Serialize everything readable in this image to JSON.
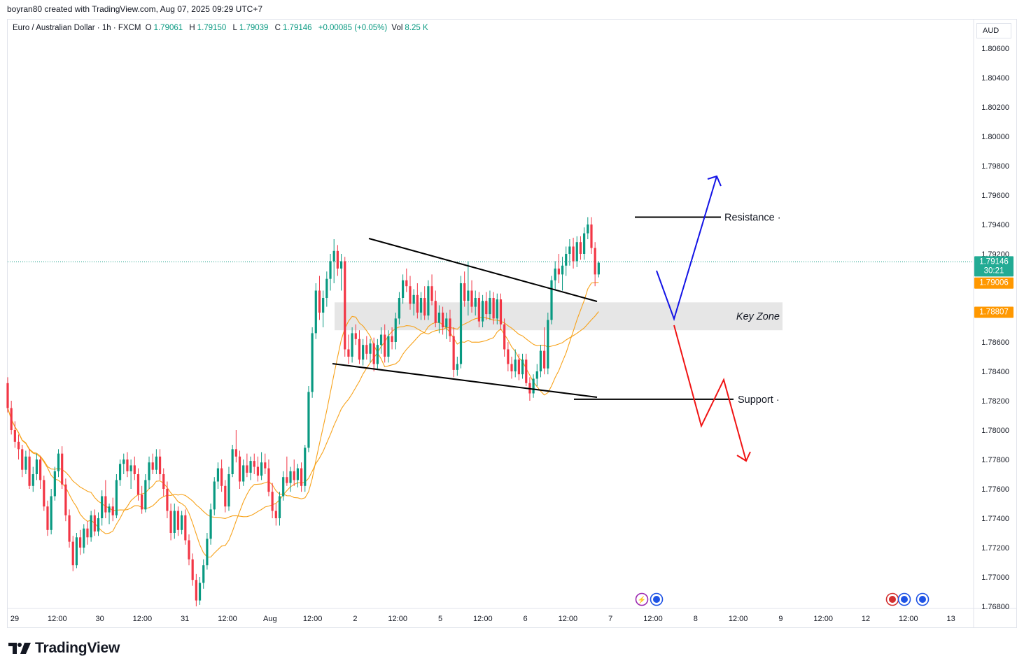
{
  "header": {
    "credit": "boyran80 created with TradingView.com, Aug 07, 2025 09:29 UTC+7"
  },
  "legend": {
    "symbol": "Euro / Australian Dollar · 1h · FXCM",
    "o_label": "O",
    "o_value": "1.79061",
    "h_label": "H",
    "h_value": "1.79150",
    "l_label": "L",
    "l_value": "1.79039",
    "c_label": "C",
    "c_value": "1.79146",
    "change": "+0.00085 (+0.05%)",
    "vol_label": "Vol",
    "vol_value": "8.25 K"
  },
  "axis": {
    "currency": "AUD",
    "price_ticks": [
      "1.80600",
      "1.80400",
      "1.80200",
      "1.80000",
      "1.79800",
      "1.79600",
      "1.79400",
      "1.79200",
      "1.79000",
      "1.78800",
      "1.78600",
      "1.78400",
      "1.78200",
      "1.78000",
      "1.77800",
      "1.77600",
      "1.77400",
      "1.77200",
      "1.77000",
      "1.76800"
    ],
    "time_ticks": [
      "29",
      "12:00",
      "30",
      "12:00",
      "31",
      "12:00",
      "Aug",
      "12:00",
      "2",
      "12:00",
      "5",
      "12:00",
      "6",
      "12:00",
      "7",
      "12:00",
      "8",
      "12:00",
      "9",
      "12:00",
      "12",
      "12:00",
      "13"
    ]
  },
  "price_labels": {
    "last_price": "1.79146",
    "countdown": "30:21",
    "ma_fast": "1.79006",
    "ma_slow": "1.78807"
  },
  "colors": {
    "up": "#089981",
    "down": "#f23645",
    "ma": "#f7a21b",
    "projection_up": "#1414e6",
    "projection_down": "#f01414",
    "key_zone": "#e6e6e6",
    "price_badge": "#22ab94",
    "ma_badge": "#ff9800"
  },
  "annotations": {
    "resistance_label": "Resistance",
    "support_label": "Support",
    "key_zone_label": "Key Zone",
    "resistance_price": 1.7945,
    "support_price": 1.7821,
    "key_zone_range": [
      1.7868,
      1.7887
    ]
  },
  "brand": {
    "name": "TradingView"
  },
  "chart_data": {
    "type": "candlestick",
    "title": "Euro / Australian Dollar · 1h · FXCM",
    "ylabel": "AUD",
    "ylim": [
      1.768,
      1.807
    ],
    "series": [
      {
        "name": "EURAUD",
        "ohlc": [
          [
            1.7832,
            1.7836,
            1.7812,
            1.7815
          ],
          [
            1.7815,
            1.782,
            1.7797,
            1.78
          ],
          [
            1.78,
            1.7806,
            1.7788,
            1.7792
          ],
          [
            1.7792,
            1.7797,
            1.778,
            1.7787
          ],
          [
            1.7787,
            1.779,
            1.7768,
            1.7773
          ],
          [
            1.7773,
            1.7786,
            1.777,
            1.7782
          ],
          [
            1.7782,
            1.7787,
            1.776,
            1.7762
          ],
          [
            1.7762,
            1.7775,
            1.7758,
            1.777
          ],
          [
            1.777,
            1.7784,
            1.7766,
            1.778
          ],
          [
            1.778,
            1.7782,
            1.776,
            1.7766
          ],
          [
            1.7766,
            1.7769,
            1.7745,
            1.7748
          ],
          [
            1.7748,
            1.7752,
            1.7728,
            1.7732
          ],
          [
            1.7732,
            1.776,
            1.7729,
            1.7755
          ],
          [
            1.7755,
            1.7775,
            1.7752,
            1.7772
          ],
          [
            1.7772,
            1.7787,
            1.7768,
            1.7784
          ],
          [
            1.7784,
            1.7789,
            1.776,
            1.7763
          ],
          [
            1.7763,
            1.7767,
            1.7738,
            1.7742
          ],
          [
            1.7742,
            1.7746,
            1.772,
            1.7724
          ],
          [
            1.7724,
            1.7728,
            1.7704,
            1.7708
          ],
          [
            1.7708,
            1.773,
            1.7706,
            1.7727
          ],
          [
            1.7727,
            1.7732,
            1.7715,
            1.772
          ],
          [
            1.772,
            1.7736,
            1.7716,
            1.7733
          ],
          [
            1.7733,
            1.7738,
            1.7722,
            1.7727
          ],
          [
            1.7727,
            1.7745,
            1.7724,
            1.7742
          ],
          [
            1.7742,
            1.7746,
            1.7728,
            1.7731
          ],
          [
            1.7731,
            1.7744,
            1.7728,
            1.774
          ],
          [
            1.774,
            1.7759,
            1.7735,
            1.7755
          ],
          [
            1.7755,
            1.7766,
            1.774,
            1.7744
          ],
          [
            1.7744,
            1.775,
            1.7736,
            1.7748
          ],
          [
            1.7748,
            1.7754,
            1.7738,
            1.7742
          ],
          [
            1.7742,
            1.777,
            1.774,
            1.7766
          ],
          [
            1.7766,
            1.778,
            1.7762,
            1.7777
          ],
          [
            1.7777,
            1.7784,
            1.777,
            1.778
          ],
          [
            1.778,
            1.7785,
            1.7768,
            1.7772
          ],
          [
            1.7772,
            1.778,
            1.776,
            1.7776
          ],
          [
            1.7776,
            1.7782,
            1.7766,
            1.777
          ],
          [
            1.777,
            1.7774,
            1.7752,
            1.7756
          ],
          [
            1.7756,
            1.7762,
            1.7743,
            1.7746
          ],
          [
            1.7746,
            1.777,
            1.7744,
            1.7766
          ],
          [
            1.7766,
            1.7782,
            1.776,
            1.7778
          ],
          [
            1.7778,
            1.7784,
            1.777,
            1.7773
          ],
          [
            1.7773,
            1.7787,
            1.777,
            1.7782
          ],
          [
            1.7782,
            1.7787,
            1.7766,
            1.777
          ],
          [
            1.777,
            1.7774,
            1.7755,
            1.776
          ],
          [
            1.776,
            1.7765,
            1.774,
            1.7745
          ],
          [
            1.7745,
            1.775,
            1.7725,
            1.773
          ],
          [
            1.773,
            1.775,
            1.7726,
            1.7745
          ],
          [
            1.7745,
            1.7748,
            1.7728,
            1.7732
          ],
          [
            1.7732,
            1.7745,
            1.7729,
            1.7742
          ],
          [
            1.7742,
            1.7746,
            1.7722,
            1.7725
          ],
          [
            1.7725,
            1.7729,
            1.7708,
            1.7712
          ],
          [
            1.7712,
            1.7716,
            1.7694,
            1.7698
          ],
          [
            1.7698,
            1.7702,
            1.768,
            1.7684
          ],
          [
            1.7684,
            1.77,
            1.7681,
            1.7696
          ],
          [
            1.7696,
            1.7712,
            1.7692,
            1.7708
          ],
          [
            1.7708,
            1.773,
            1.7705,
            1.7726
          ],
          [
            1.7726,
            1.775,
            1.7722,
            1.7746
          ],
          [
            1.7746,
            1.7768,
            1.7742,
            1.7765
          ],
          [
            1.7765,
            1.7778,
            1.776,
            1.7774
          ],
          [
            1.7774,
            1.778,
            1.7758,
            1.7762
          ],
          [
            1.7762,
            1.7766,
            1.7744,
            1.7748
          ],
          [
            1.7748,
            1.7775,
            1.7745,
            1.777
          ],
          [
            1.777,
            1.779,
            1.7768,
            1.7787
          ],
          [
            1.7787,
            1.78,
            1.7778,
            1.7782
          ],
          [
            1.7782,
            1.7786,
            1.776,
            1.7765
          ],
          [
            1.7765,
            1.778,
            1.7762,
            1.7776
          ],
          [
            1.7776,
            1.7784,
            1.7768,
            1.7771
          ],
          [
            1.7771,
            1.7782,
            1.7766,
            1.7779
          ],
          [
            1.7779,
            1.7784,
            1.777,
            1.7775
          ],
          [
            1.7775,
            1.7782,
            1.7765,
            1.7769
          ],
          [
            1.7769,
            1.7785,
            1.7766,
            1.7778
          ],
          [
            1.7778,
            1.7784,
            1.777,
            1.7774
          ],
          [
            1.7774,
            1.778,
            1.7755,
            1.7758
          ],
          [
            1.7758,
            1.7764,
            1.774,
            1.7745
          ],
          [
            1.7745,
            1.775,
            1.7735,
            1.774
          ],
          [
            1.774,
            1.7758,
            1.7735,
            1.7755
          ],
          [
            1.7755,
            1.7772,
            1.7752,
            1.7768
          ],
          [
            1.7768,
            1.7782,
            1.7762,
            1.7764
          ],
          [
            1.7764,
            1.7775,
            1.7758,
            1.7772
          ],
          [
            1.7772,
            1.778,
            1.7762,
            1.7766
          ],
          [
            1.7766,
            1.7777,
            1.7761,
            1.7774
          ],
          [
            1.7774,
            1.7778,
            1.7758,
            1.7762
          ],
          [
            1.7762,
            1.779,
            1.7758,
            1.7788
          ],
          [
            1.7788,
            1.783,
            1.7785,
            1.7826
          ],
          [
            1.7826,
            1.787,
            1.7822,
            1.7866
          ],
          [
            1.7866,
            1.79,
            1.7862,
            1.7895
          ],
          [
            1.7895,
            1.7905,
            1.7875,
            1.788
          ],
          [
            1.788,
            1.7895,
            1.787,
            1.789
          ],
          [
            1.789,
            1.7908,
            1.7884,
            1.7903
          ],
          [
            1.7903,
            1.792,
            1.7895,
            1.7915
          ],
          [
            1.7915,
            1.793,
            1.79,
            1.7922
          ],
          [
            1.7922,
            1.7926,
            1.7905,
            1.791
          ],
          [
            1.791,
            1.792,
            1.7895,
            1.7915
          ],
          [
            1.7915,
            1.7918,
            1.785,
            1.7855
          ],
          [
            1.7855,
            1.7865,
            1.7845,
            1.785
          ],
          [
            1.785,
            1.787,
            1.7846,
            1.7866
          ],
          [
            1.7866,
            1.7872,
            1.7858,
            1.7862
          ],
          [
            1.7862,
            1.7868,
            1.7845,
            1.7848
          ],
          [
            1.7848,
            1.7862,
            1.7844,
            1.7858
          ],
          [
            1.7858,
            1.7864,
            1.7848,
            1.7852
          ],
          [
            1.7852,
            1.7862,
            1.7846,
            1.7859
          ],
          [
            1.7859,
            1.7863,
            1.784,
            1.7845
          ],
          [
            1.7845,
            1.7862,
            1.7842,
            1.7858
          ],
          [
            1.7858,
            1.787,
            1.7852,
            1.7865
          ],
          [
            1.7865,
            1.7872,
            1.7846,
            1.785
          ],
          [
            1.785,
            1.7868,
            1.7846,
            1.7864
          ],
          [
            1.7864,
            1.787,
            1.7855,
            1.786
          ],
          [
            1.786,
            1.788,
            1.7855,
            1.7876
          ],
          [
            1.7876,
            1.7894,
            1.7872,
            1.789
          ],
          [
            1.789,
            1.7906,
            1.7886,
            1.7902
          ],
          [
            1.7902,
            1.791,
            1.7894,
            1.7898
          ],
          [
            1.7898,
            1.7905,
            1.7882,
            1.7886
          ],
          [
            1.7886,
            1.7896,
            1.7878,
            1.7892
          ],
          [
            1.7892,
            1.79,
            1.7876,
            1.788
          ],
          [
            1.788,
            1.7894,
            1.7875,
            1.789
          ],
          [
            1.789,
            1.7898,
            1.7875,
            1.7878
          ],
          [
            1.7878,
            1.7902,
            1.7875,
            1.7898
          ],
          [
            1.7898,
            1.7906,
            1.7885,
            1.7888
          ],
          [
            1.7888,
            1.7895,
            1.787,
            1.7873
          ],
          [
            1.7873,
            1.7885,
            1.7866,
            1.788
          ],
          [
            1.788,
            1.7884,
            1.7865,
            1.787
          ],
          [
            1.787,
            1.788,
            1.7862,
            1.7876
          ],
          [
            1.7876,
            1.7882,
            1.786,
            1.7864
          ],
          [
            1.7864,
            1.787,
            1.7836,
            1.7841
          ],
          [
            1.7841,
            1.785,
            1.7837,
            1.7845
          ],
          [
            1.7845,
            1.7905,
            1.7842,
            1.79
          ],
          [
            1.79,
            1.7908,
            1.7884,
            1.7888
          ],
          [
            1.7888,
            1.7915,
            1.7878,
            1.7895
          ],
          [
            1.7895,
            1.7902,
            1.788,
            1.7884
          ],
          [
            1.7884,
            1.7895,
            1.7878,
            1.789
          ],
          [
            1.789,
            1.7894,
            1.787,
            1.7874
          ],
          [
            1.7874,
            1.7892,
            1.787,
            1.7888
          ],
          [
            1.7888,
            1.7894,
            1.7875,
            1.7879
          ],
          [
            1.7879,
            1.7895,
            1.7875,
            1.789
          ],
          [
            1.789,
            1.7894,
            1.7872,
            1.7876
          ],
          [
            1.7876,
            1.7893,
            1.7872,
            1.7889
          ],
          [
            1.7889,
            1.7893,
            1.7868,
            1.7872
          ],
          [
            1.7872,
            1.7876,
            1.785,
            1.7855
          ],
          [
            1.7855,
            1.786,
            1.784,
            1.7845
          ],
          [
            1.7845,
            1.785,
            1.7835,
            1.784
          ],
          [
            1.784,
            1.7855,
            1.7836,
            1.7848
          ],
          [
            1.7848,
            1.7852,
            1.7834,
            1.7838
          ],
          [
            1.7838,
            1.7852,
            1.7835,
            1.7848
          ],
          [
            1.7848,
            1.7852,
            1.783,
            1.7832
          ],
          [
            1.7832,
            1.7836,
            1.782,
            1.7825
          ],
          [
            1.7825,
            1.7838,
            1.7822,
            1.7835
          ],
          [
            1.7835,
            1.7845,
            1.783,
            1.784
          ],
          [
            1.784,
            1.7858,
            1.7836,
            1.7854
          ],
          [
            1.7854,
            1.787,
            1.7838,
            1.7842
          ],
          [
            1.7842,
            1.788,
            1.7838,
            1.7875
          ],
          [
            1.7875,
            1.7905,
            1.7872,
            1.7902
          ],
          [
            1.7902,
            1.7915,
            1.7895,
            1.791
          ],
          [
            1.791,
            1.792,
            1.79,
            1.7906
          ],
          [
            1.7906,
            1.7918,
            1.7895,
            1.7912
          ],
          [
            1.7912,
            1.7925,
            1.7905,
            1.792
          ],
          [
            1.792,
            1.793,
            1.7912,
            1.7925
          ],
          [
            1.7925,
            1.7931,
            1.791,
            1.7915
          ],
          [
            1.7915,
            1.7932,
            1.7911,
            1.7928
          ],
          [
            1.7928,
            1.7932,
            1.7916,
            1.792
          ],
          [
            1.792,
            1.7938,
            1.7916,
            1.7934
          ],
          [
            1.7934,
            1.7945,
            1.793,
            1.794
          ],
          [
            1.794,
            1.7945,
            1.792,
            1.7924
          ],
          [
            1.7924,
            1.7928,
            1.7898,
            1.7906
          ],
          [
            1.7906,
            1.7915,
            1.7904,
            1.7914
          ]
        ]
      },
      {
        "name": "MA fast",
        "last": 1.79006
      },
      {
        "name": "MA slow",
        "last": 1.78807
      }
    ],
    "grid": false,
    "legend": "top-left"
  }
}
